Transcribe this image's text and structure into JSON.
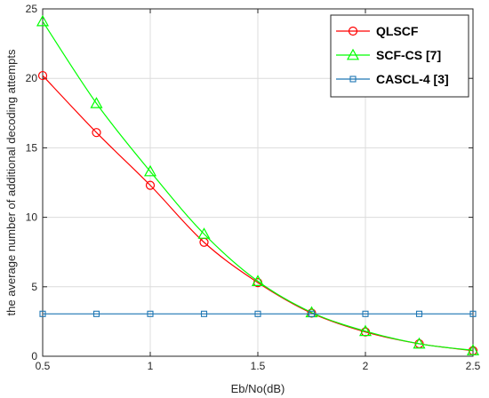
{
  "chart_data": {
    "type": "line",
    "title": "",
    "xlabel": "Eb/No(dB)",
    "ylabel": "the average number of additional decoding attempts",
    "xlim": [
      0.5,
      2.5
    ],
    "ylim": [
      0,
      25
    ],
    "xticks": [
      0.5,
      1,
      1.5,
      2,
      2.5
    ],
    "yticks": [
      0,
      5,
      10,
      15,
      20,
      25
    ],
    "x": [
      0.5,
      0.75,
      1,
      1.25,
      1.5,
      1.75,
      2,
      2.25,
      2.5
    ],
    "grid": true,
    "legend_position": "top-right",
    "series": [
      {
        "name": "QLSCF",
        "color": "#ff0000",
        "marker": "circle",
        "values": [
          20.2,
          16.1,
          12.3,
          8.2,
          5.3,
          3.1,
          1.75,
          0.9,
          0.4
        ]
      },
      {
        "name": "SCF-CS [7]",
        "color": "#00ff00",
        "marker": "triangle",
        "values": [
          24.1,
          18.2,
          13.3,
          8.8,
          5.4,
          3.15,
          1.8,
          0.9,
          0.42
        ]
      },
      {
        "name": "CASCL-4 [3]",
        "color": "#1f77b4",
        "marker": "square",
        "values": [
          3.05,
          3.05,
          3.05,
          3.05,
          3.05,
          3.05,
          3.05,
          3.05,
          3.05
        ]
      }
    ]
  }
}
